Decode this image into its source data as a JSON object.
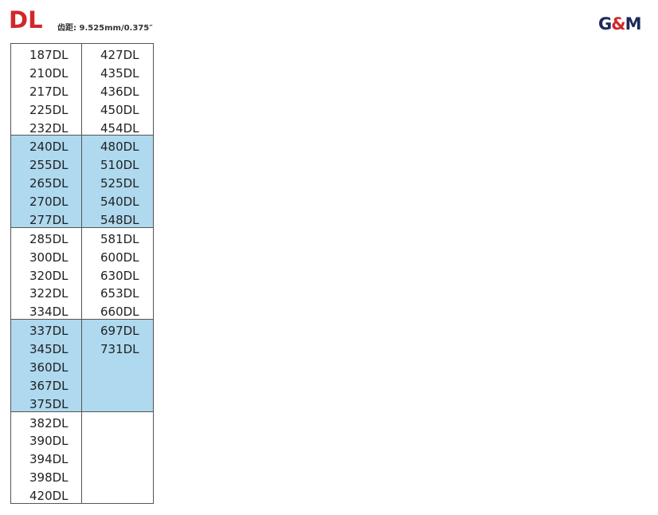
{
  "header": {
    "title": "DL",
    "pitch": "齿距: 9.525mm/0.375″",
    "logo_text": "G&M"
  },
  "colors": {
    "title": "#d3262a",
    "highlight": "#aed9ef",
    "logo": "#1c2a5a"
  },
  "groups": [
    {
      "highlight": false,
      "left": [
        "187DL",
        "210DL",
        "217DL",
        "225DL",
        "232DL"
      ],
      "right": [
        "427DL",
        "435DL",
        "436DL",
        "450DL",
        "454DL"
      ]
    },
    {
      "highlight": true,
      "left": [
        "240DL",
        "255DL",
        "265DL",
        "270DL",
        "277DL"
      ],
      "right": [
        "480DL",
        "510DL",
        "525DL",
        "540DL",
        "548DL"
      ]
    },
    {
      "highlight": false,
      "left": [
        "285DL",
        "300DL",
        "320DL",
        "322DL",
        "334DL"
      ],
      "right": [
        "581DL",
        "600DL",
        "630DL",
        "653DL",
        "660DL"
      ]
    },
    {
      "highlight": true,
      "left": [
        "337DL",
        "345DL",
        "360DL",
        "367DL",
        "375DL"
      ],
      "right": [
        "697DL",
        "731DL"
      ]
    },
    {
      "highlight": false,
      "left": [
        "382DL",
        "390DL",
        "394DL",
        "398DL",
        "420DL"
      ],
      "right": []
    }
  ]
}
